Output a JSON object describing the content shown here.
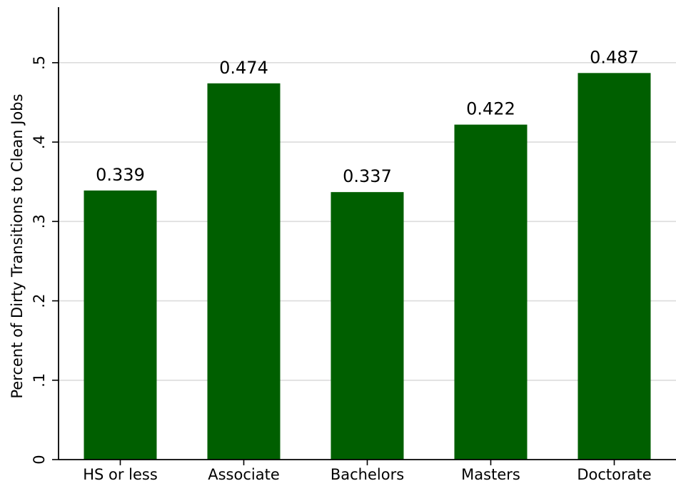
{
  "chart_data": {
    "type": "bar",
    "title": "",
    "xlabel": "",
    "ylabel": "Percent of Dirty Transitions to Clean Jobs",
    "categories": [
      "HS or less",
      "Associate",
      "Bachelors",
      "Masters",
      "Doctorate"
    ],
    "values": [
      0.339,
      0.474,
      0.337,
      0.422,
      0.487
    ],
    "value_labels": [
      "0.339",
      "0.474",
      "0.337",
      "0.422",
      "0.487"
    ],
    "yticks": [
      0,
      0.1,
      0.2,
      0.3,
      0.4,
      0.5
    ],
    "ytick_labels": [
      "0",
      ".1",
      ".2",
      ".3",
      ".4",
      ".5"
    ],
    "ylim": [
      0,
      0.57
    ],
    "grid": true,
    "legend": "none",
    "colors": {
      "bar": "#005f00",
      "grid": "#dcdcdc",
      "axis": "#000000"
    }
  }
}
